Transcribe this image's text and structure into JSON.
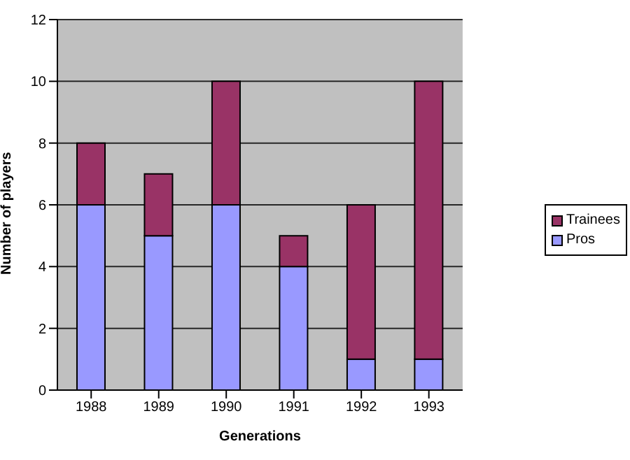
{
  "chart_data": {
    "type": "bar",
    "stacked": true,
    "xlabel": "Generations",
    "ylabel": "Number of players",
    "categories": [
      "1988",
      "1989",
      "1990",
      "1991",
      "1992",
      "1993"
    ],
    "series": [
      {
        "name": "Pros",
        "color": "#9999ff",
        "values": [
          6,
          5,
          6,
          4,
          1,
          1
        ]
      },
      {
        "name": "Trainees",
        "color": "#993366",
        "values": [
          2,
          2,
          4,
          1,
          5,
          9
        ]
      }
    ],
    "ylim": [
      0,
      12
    ],
    "yticks": [
      0,
      2,
      4,
      6,
      8,
      10,
      12
    ],
    "grid": "y",
    "legend": "right"
  }
}
